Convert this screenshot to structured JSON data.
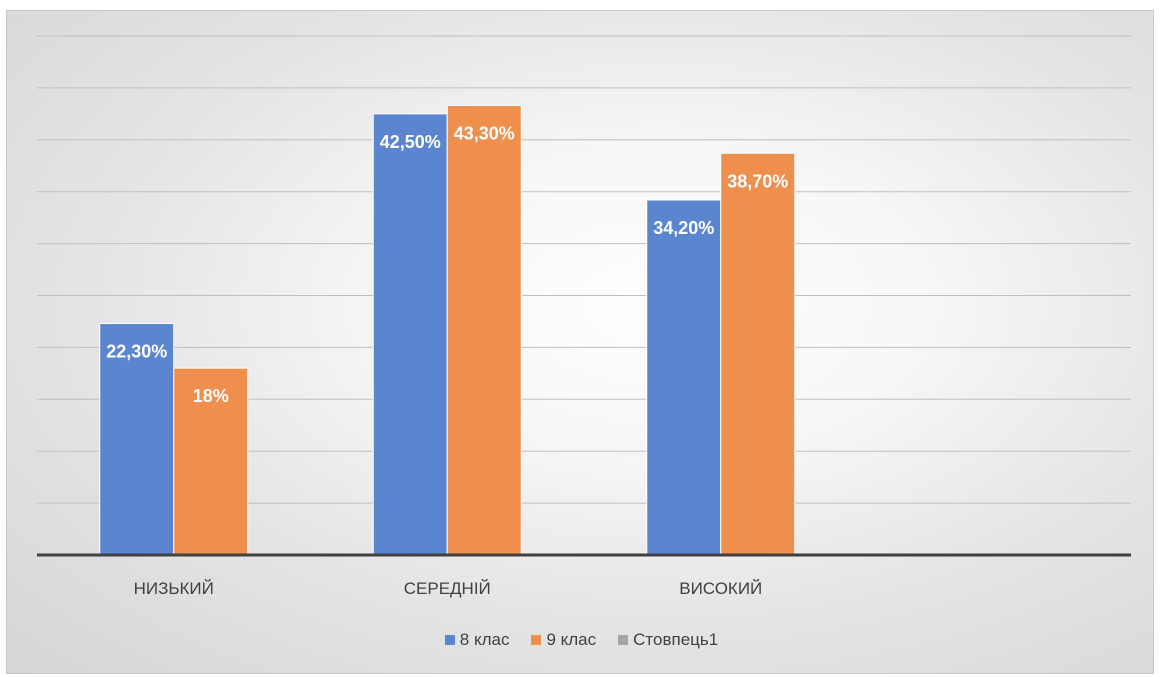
{
  "chart_data": {
    "type": "bar",
    "title": "",
    "xlabel": "",
    "ylabel": "",
    "categories": [
      "НИЗЬКИЙ",
      "СЕРЕДНІЙ",
      "ВИСОКИЙ",
      ""
    ],
    "series": [
      {
        "name": "8 клас",
        "color": "#5b86cf",
        "values": [
          22.3,
          42.5,
          34.2,
          null
        ],
        "labels": [
          "22,30%",
          "42,50%",
          "34,20%",
          ""
        ]
      },
      {
        "name": "9 клас",
        "color": "#ee8f4e",
        "values": [
          18.0,
          43.3,
          38.7,
          null
        ],
        "labels": [
          "18%",
          "43,30%",
          "38,70%",
          ""
        ]
      },
      {
        "name": "Стовпець1",
        "color": "#a5a5a5",
        "values": [
          null,
          null,
          null,
          null
        ],
        "labels": [
          "",
          "",
          "",
          ""
        ]
      }
    ],
    "ylim": [
      0,
      50
    ],
    "gridlines": true,
    "y_axis_labels_shown": false,
    "legend_position": "bottom"
  }
}
